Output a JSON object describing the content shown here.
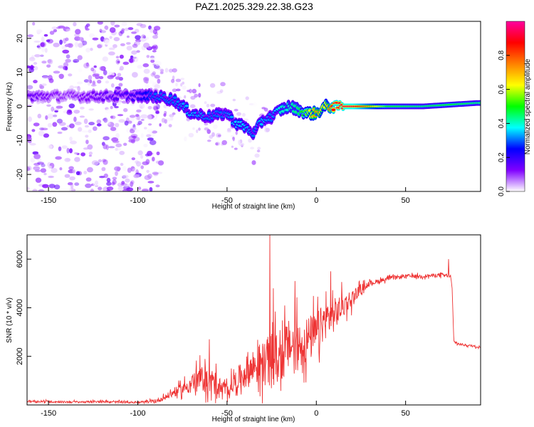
{
  "title": "PAZ1.2025.329.22.38.G23",
  "chart_data": [
    {
      "type": "heatmap",
      "name": "spectrogram",
      "xlabel": "Height of straight line (km)",
      "ylabel": "Frequency (Hz)",
      "xlim": [
        -162,
        92
      ],
      "ylim": [
        -25,
        25
      ],
      "xticks": [
        -150,
        -100,
        -50,
        0,
        50
      ],
      "xtick_labels": [
        "-150",
        "-100",
        "-50",
        "0",
        "50"
      ],
      "yticks": [
        -20,
        -10,
        0,
        10,
        20
      ],
      "ytick_labels": [
        "-20",
        "-10",
        "0",
        "10",
        "20"
      ],
      "colorbar": {
        "label": "Normalized spectral amplitude",
        "range": [
          0,
          1
        ],
        "ticks": [
          0.0,
          0.2,
          0.4,
          0.6,
          0.8
        ],
        "tick_labels": [
          "0.0",
          "0.2",
          "0.4",
          "0.6",
          "0.8"
        ],
        "colormap": [
          "#ffffff",
          "#8000ff",
          "#0000ff",
          "#00ffff",
          "#00ff00",
          "#ffff00",
          "#ff8000",
          "#ff0000",
          "#ff00a0"
        ]
      },
      "ridge": {
        "height_km": [
          -160,
          -140,
          -120,
          -100,
          -90,
          -80,
          -70,
          -60,
          -50,
          -45,
          -40,
          -35,
          -30,
          -25,
          -20,
          -15,
          -10,
          -5,
          0,
          5,
          10,
          20,
          40,
          60,
          75,
          90
        ],
        "frequency_hz": [
          3,
          3,
          3,
          3,
          3,
          2,
          -2,
          -3,
          -2,
          -5,
          -6,
          -8,
          -4,
          -3,
          -1,
          0,
          -1,
          -2,
          -2,
          0,
          0,
          0,
          0,
          0,
          0.5,
          1
        ],
        "amplitude": [
          0.15,
          0.1,
          0.15,
          0.2,
          0.3,
          0.3,
          0.35,
          0.3,
          0.3,
          0.35,
          0.35,
          0.3,
          0.35,
          0.3,
          0.4,
          0.4,
          0.45,
          0.55,
          0.75,
          0.6,
          0.9,
          0.95,
          0.5,
          0.45,
          0.5,
          0.45
        ]
      }
    },
    {
      "type": "line",
      "name": "snr",
      "xlabel": "Height of straight line (km)",
      "ylabel": "SNR (10 * v/v)",
      "xlim": [
        -162,
        92
      ],
      "ylim": [
        0,
        7000
      ],
      "xticks": [
        -150,
        -100,
        -50,
        0,
        50
      ],
      "xtick_labels": [
        "-150",
        "-100",
        "-50",
        "0",
        "50"
      ],
      "yticks": [
        2000,
        4000,
        6000
      ],
      "ytick_labels": [
        "2000",
        "4000",
        "6000"
      ],
      "color": "#ee3333",
      "series": [
        {
          "name": "SNR",
          "x": [
            -160,
            -140,
            -120,
            -100,
            -90,
            -85,
            -80,
            -75,
            -70,
            -65,
            -60,
            -55,
            -50,
            -45,
            -40,
            -35,
            -30,
            -25,
            -20,
            -15,
            -10,
            -5,
            0,
            5,
            10,
            15,
            20,
            25,
            30,
            40,
            50,
            60,
            70,
            75,
            76,
            77,
            80,
            85,
            90
          ],
          "y": [
            150,
            120,
            130,
            100,
            150,
            300,
            500,
            650,
            900,
            1100,
            1000,
            700,
            600,
            1000,
            1300,
            1600,
            1700,
            1900,
            1900,
            2500,
            2400,
            2700,
            2900,
            3500,
            3700,
            4100,
            4400,
            4800,
            5000,
            5200,
            5300,
            5300,
            5350,
            5300,
            4900,
            2600,
            2500,
            2450,
            2400
          ]
        }
      ],
      "noise_amplitude": {
        "x": [
          -160,
          -100,
          -85,
          -75,
          -65,
          -58,
          -50,
          -40,
          -30,
          -25,
          -15,
          -5,
          5,
          10,
          15,
          20,
          25,
          30,
          40,
          60,
          76,
          77,
          90
        ],
        "a": [
          60,
          60,
          150,
          350,
          700,
          900,
          400,
          900,
          1300,
          1500,
          1500,
          1400,
          1100,
          1000,
          700,
          500,
          250,
          150,
          120,
          100,
          120,
          70,
          60
        ]
      },
      "spikes": [
        {
          "x": -60,
          "y": 2700
        },
        {
          "x": -26,
          "y": 7000
        },
        {
          "x": -24,
          "y": 4800
        },
        {
          "x": -12,
          "y": 5100
        },
        {
          "x": 8,
          "y": 5500
        },
        {
          "x": 74,
          "y": 6000
        }
      ]
    }
  ]
}
